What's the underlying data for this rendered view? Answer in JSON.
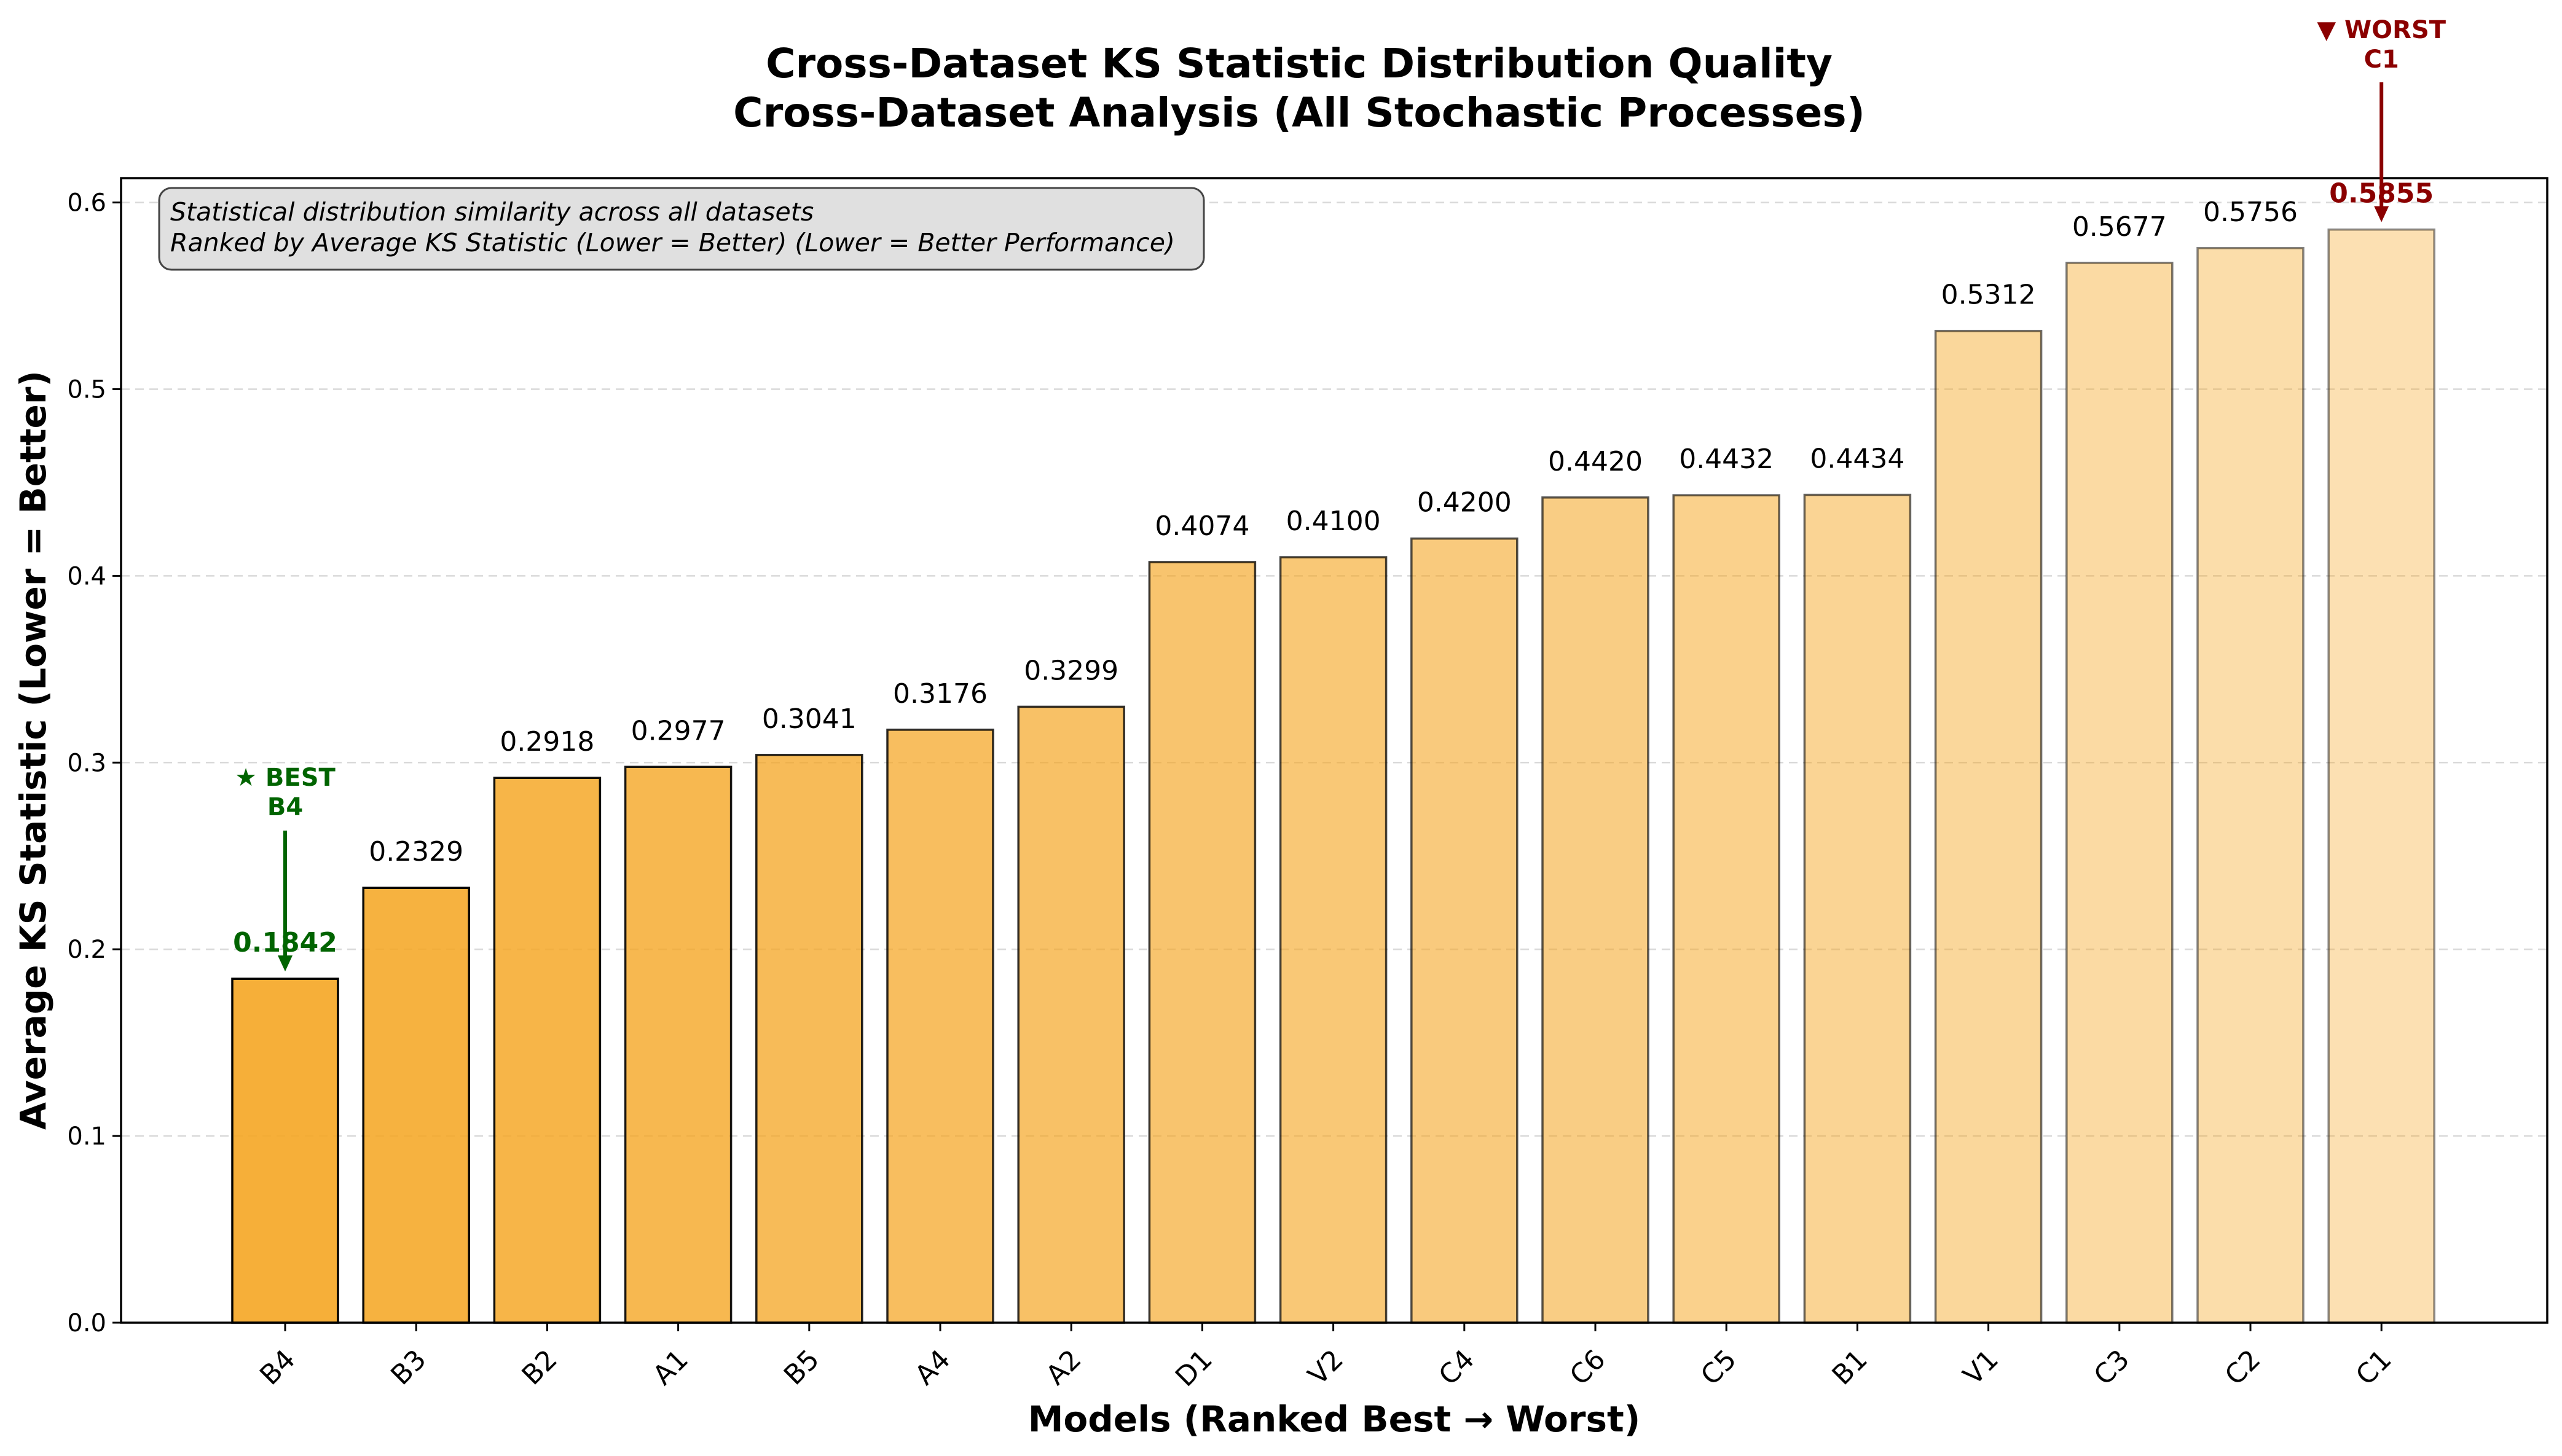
{
  "chart_data": {
    "type": "bar",
    "title": "Cross-Dataset KS Statistic Distribution Quality",
    "subtitle": "Cross-Dataset Analysis (All Stochastic Processes)",
    "xlabel": "Models (Ranked Best → Worst)",
    "ylabel": "Average KS Statistic (Lower = Better)",
    "ylim": [
      0,
      0.615
    ],
    "yticks": [
      "0.0",
      "0.1",
      "0.2",
      "0.3",
      "0.4",
      "0.5",
      "0.6"
    ],
    "categories": [
      "B4",
      "B3",
      "B2",
      "A1",
      "B5",
      "A4",
      "A2",
      "D1",
      "V2",
      "C4",
      "C6",
      "C5",
      "B1",
      "V1",
      "C3",
      "C2",
      "C1"
    ],
    "values": [
      0.1842,
      0.2329,
      0.2918,
      0.2977,
      0.3041,
      0.3176,
      0.3299,
      0.4074,
      0.41,
      0.42,
      0.442,
      0.4432,
      0.4434,
      0.5312,
      0.5677,
      0.5756,
      0.5855
    ],
    "value_labels": [
      "0.1842",
      "0.2329",
      "0.2918",
      "0.2977",
      "0.3041",
      "0.3176",
      "0.3299",
      "0.4074",
      "0.4100",
      "0.4200",
      "0.4420",
      "0.4432",
      "0.4434",
      "0.5312",
      "0.5677",
      "0.5756",
      "0.5855"
    ],
    "grid": "y-dashed",
    "bar_color": "#F5A623",
    "best_color": "#006400",
    "worst_color": "#8B0000",
    "note": {
      "line1": "Statistical distribution similarity across all datasets",
      "line2": "Ranked by Average KS Statistic (Lower = Better) (Lower = Better Performance)"
    },
    "best_annotation": {
      "line1": "★ BEST",
      "line2": "B4"
    },
    "worst_annotation": {
      "line1": "▼ WORST",
      "line2": "C1"
    }
  }
}
